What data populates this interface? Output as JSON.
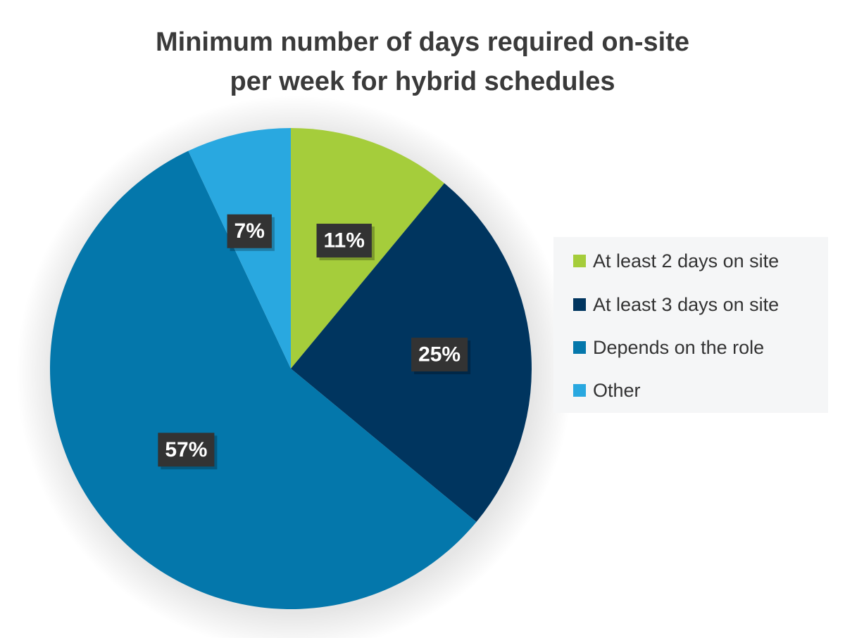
{
  "chart_data": {
    "type": "pie",
    "title_lines": [
      "Minimum number of days required on-site",
      "per week for hybrid schedules"
    ],
    "slices": [
      {
        "name": "At least 2 days on site",
        "value": 11,
        "label": "11%",
        "color": "#a5cd3b"
      },
      {
        "name": "At least 3 days on site",
        "value": 25,
        "label": "25%",
        "color": "#00355f"
      },
      {
        "name": "Depends on the role",
        "value": 57,
        "label": "57%",
        "color": "#0477ab"
      },
      {
        "name": "Other",
        "value": 7,
        "label": "7%",
        "color": "#29a8e0"
      }
    ],
    "start_angle_deg": 0,
    "direction": "clockwise",
    "legend_position": "right"
  }
}
